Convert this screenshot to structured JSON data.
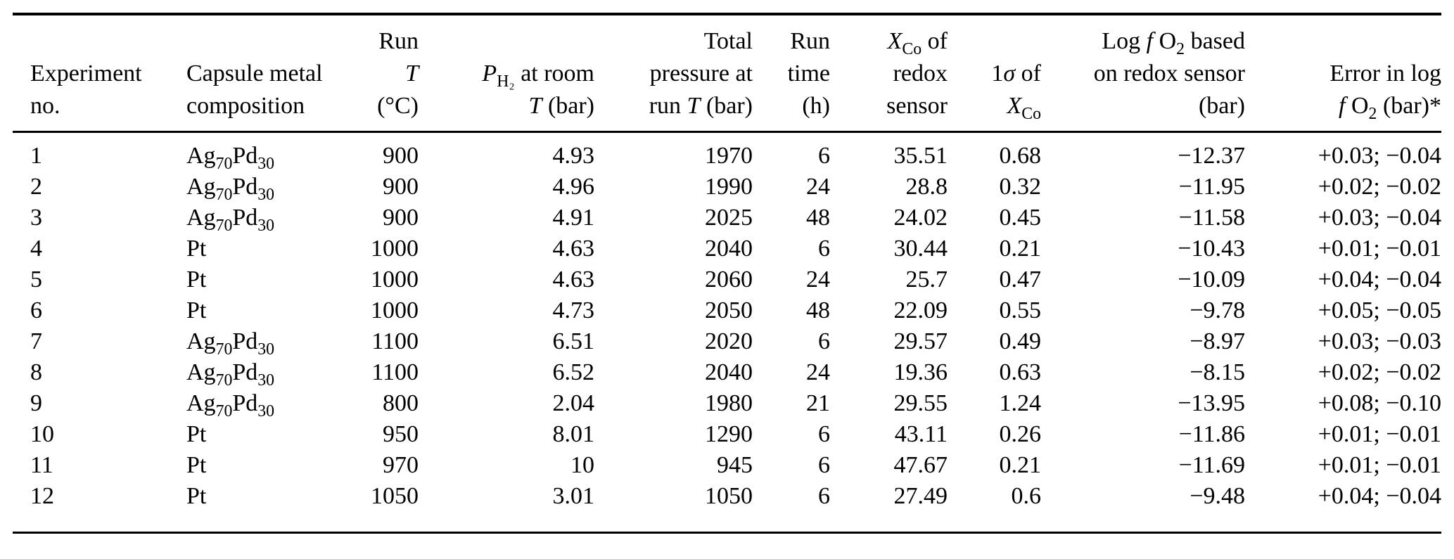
{
  "page": {
    "background_color": "#ffffff",
    "text_color": "#000000"
  },
  "table": {
    "columns": [
      {
        "id": "experiment-no",
        "align": "left",
        "header": [
          "Experiment",
          "no."
        ]
      },
      {
        "id": "capsule-metal",
        "align": "left",
        "header": [
          "Capsule metal",
          "composition"
        ]
      },
      {
        "id": "run-temperature",
        "align": "right",
        "header": [
          "Run",
          "_T_",
          "(°C)"
        ]
      },
      {
        "id": "ph2-at-room-t",
        "align": "right",
        "header": [
          "_P_~H₂~ at room",
          "_T_ (bar)"
        ]
      },
      {
        "id": "total-pressure",
        "align": "right",
        "header": [
          "Total",
          "pressure at",
          "run _T_ (bar)"
        ]
      },
      {
        "id": "run-time",
        "align": "right",
        "header": [
          "Run",
          "time",
          "(h)"
        ]
      },
      {
        "id": "xco-of-redox-sensor",
        "align": "right",
        "header": [
          "_X_~Co~ of",
          "redox",
          "sensor"
        ]
      },
      {
        "id": "one-sigma-of-xco",
        "align": "right",
        "header": [
          "1_σ_ of",
          "_X_~Co~"
        ]
      },
      {
        "id": "log-fo2-redox-sensor",
        "align": "right",
        "header": [
          "Log _f_ O~2~ based",
          "on redox sensor",
          "(bar)"
        ]
      },
      {
        "id": "error-in-log-fo2",
        "align": "right",
        "header": [
          "Error in log",
          "_f_ O~2~ (bar)*"
        ]
      }
    ],
    "rows": [
      {
        "cells": [
          "1",
          "Ag~70~Pd~30~",
          "900",
          "4.93",
          "1970",
          "6",
          "35.51",
          "0.68",
          "−12.37",
          "+0.03; −0.04"
        ]
      },
      {
        "cells": [
          "2",
          "Ag~70~Pd~30~",
          "900",
          "4.96",
          "1990",
          "24",
          "28.8",
          "0.32",
          "−11.95",
          "+0.02; −0.02"
        ]
      },
      {
        "cells": [
          "3",
          "Ag~70~Pd~30~",
          "900",
          "4.91",
          "2025",
          "48",
          "24.02",
          "0.45",
          "−11.58",
          "+0.03; −0.04"
        ]
      },
      {
        "cells": [
          "4",
          "Pt",
          "1000",
          "4.63",
          "2040",
          "6",
          "30.44",
          "0.21",
          "−10.43",
          "+0.01; −0.01"
        ]
      },
      {
        "cells": [
          "5",
          "Pt",
          "1000",
          "4.63",
          "2060",
          "24",
          "25.7",
          "0.47",
          "−10.09",
          "+0.04; −0.04"
        ]
      },
      {
        "cells": [
          "6",
          "Pt",
          "1000",
          "4.73",
          "2050",
          "48",
          "22.09",
          "0.55",
          "−9.78",
          "+0.05; −0.05"
        ]
      },
      {
        "cells": [
          "7",
          "Ag~70~Pd~30~",
          "1100",
          "6.51",
          "2020",
          "6",
          "29.57",
          "0.49",
          "−8.97",
          "+0.03; −0.03"
        ]
      },
      {
        "cells": [
          "8",
          "Ag~70~Pd~30~",
          "1100",
          "6.52",
          "2040",
          "24",
          "19.36",
          "0.63",
          "−8.15",
          "+0.02; −0.02"
        ]
      },
      {
        "cells": [
          "9",
          "Ag~70~Pd~30~",
          "800",
          "2.04",
          "1980",
          "21",
          "29.55",
          "1.24",
          "−13.95",
          "+0.08; −0.10"
        ]
      },
      {
        "cells": [
          "10",
          "Pt",
          "950",
          "8.01",
          "1290",
          "6",
          "43.11",
          "0.26",
          "−11.86",
          "+0.01; −0.01"
        ]
      },
      {
        "cells": [
          "11",
          "Pt",
          "970",
          "10",
          "945",
          "6",
          "47.67",
          "0.21",
          "−11.69",
          "+0.01; −0.01"
        ]
      },
      {
        "cells": [
          "12",
          "Pt",
          "1050",
          "3.01",
          "1050",
          "6",
          "27.49",
          "0.6",
          "−9.48",
          "+0.04; −0.04"
        ]
      }
    ]
  }
}
